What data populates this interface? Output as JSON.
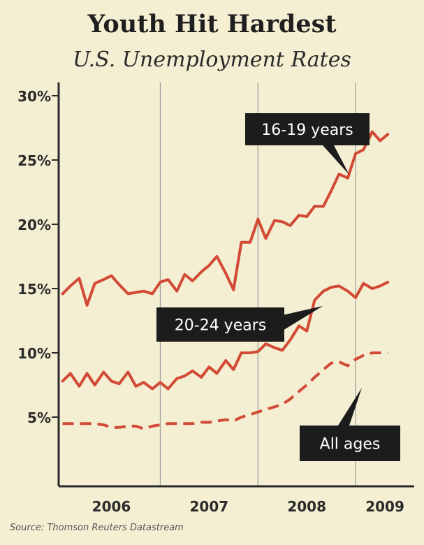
{
  "title": "Youth Hit Hardest",
  "subtitle": "U.S. Unemployment Rates",
  "source": "Source: Thomson Reuters Datastream",
  "colors": {
    "background": "#f4efd2",
    "series": "#d24a35",
    "axis": "#2a2a2a",
    "gridline": "#9a9a9a",
    "callout_bg": "#1c1c1c",
    "callout_text": "#ffffff"
  },
  "chart_data": {
    "type": "line",
    "title": "Youth Hit Hardest",
    "subtitle": "U.S. Unemployment Rates",
    "xlabel": "",
    "ylabel": "",
    "ylim": [
      0,
      31
    ],
    "yticks": [
      5,
      10,
      15,
      20,
      25,
      30
    ],
    "ytick_labels": [
      "5%",
      "10%",
      "15%",
      "20%",
      "25%",
      "30%"
    ],
    "xlim": [
      2005.96,
      2009.6
    ],
    "x_year_labels": [
      "2006",
      "2007",
      "2008",
      "2009"
    ],
    "grid": "vertical lines at year boundaries",
    "series": [
      {
        "name": "16-19 years",
        "style": "solid",
        "x": [
          2006.0,
          2006.08,
          2006.17,
          2006.25,
          2006.33,
          2006.42,
          2006.5,
          2006.58,
          2006.67,
          2006.75,
          2006.83,
          2006.92,
          2007.0,
          2007.08,
          2007.17,
          2007.25,
          2007.33,
          2007.42,
          2007.5,
          2007.58,
          2007.67,
          2007.75,
          2007.83,
          2007.92,
          2008.0,
          2008.08,
          2008.17,
          2008.25,
          2008.33,
          2008.42,
          2008.5,
          2008.58,
          2008.67,
          2008.75,
          2008.83,
          2008.92,
          2009.0,
          2009.08,
          2009.17,
          2009.25,
          2009.33
        ],
        "values": [
          14.6,
          15.2,
          15.8,
          13.7,
          15.4,
          15.7,
          16.0,
          15.3,
          14.6,
          14.7,
          14.8,
          14.6,
          15.5,
          15.7,
          14.8,
          16.1,
          15.6,
          16.3,
          16.8,
          17.5,
          16.2,
          14.9,
          18.6,
          18.6,
          20.4,
          18.9,
          20.3,
          20.2,
          19.9,
          20.7,
          20.6,
          21.4,
          21.4,
          22.6,
          23.9,
          23.6,
          25.5,
          25.8,
          27.2,
          26.5,
          27.0
        ]
      },
      {
        "name": "20-24 years",
        "style": "solid",
        "x": [
          2006.0,
          2006.08,
          2006.17,
          2006.25,
          2006.33,
          2006.42,
          2006.5,
          2006.58,
          2006.67,
          2006.75,
          2006.83,
          2006.92,
          2007.0,
          2007.08,
          2007.17,
          2007.25,
          2007.33,
          2007.42,
          2007.5,
          2007.58,
          2007.67,
          2007.75,
          2007.83,
          2007.92,
          2008.0,
          2008.08,
          2008.17,
          2008.25,
          2008.33,
          2008.42,
          2008.5,
          2008.58,
          2008.67,
          2008.75,
          2008.83,
          2008.92,
          2009.0,
          2009.08,
          2009.17,
          2009.25,
          2009.33
        ],
        "values": [
          7.8,
          8.4,
          7.4,
          8.4,
          7.5,
          8.5,
          7.8,
          7.6,
          8.5,
          7.4,
          7.7,
          7.2,
          7.7,
          7.2,
          8.0,
          8.2,
          8.6,
          8.1,
          8.9,
          8.4,
          9.4,
          8.7,
          10.0,
          10.0,
          10.1,
          10.7,
          10.4,
          10.2,
          11.0,
          12.1,
          11.7,
          14.1,
          14.8,
          15.1,
          15.2,
          14.8,
          14.3,
          15.4,
          15.0,
          15.2,
          15.5
        ]
      },
      {
        "name": "All ages",
        "style": "dashed",
        "x": [
          2006.0,
          2006.08,
          2006.17,
          2006.25,
          2006.33,
          2006.42,
          2006.5,
          2006.58,
          2006.67,
          2006.75,
          2006.83,
          2006.92,
          2007.0,
          2007.08,
          2007.17,
          2007.25,
          2007.33,
          2007.42,
          2007.5,
          2007.58,
          2007.67,
          2007.75,
          2007.83,
          2007.92,
          2008.0,
          2008.08,
          2008.17,
          2008.25,
          2008.33,
          2008.42,
          2008.5,
          2008.58,
          2008.67,
          2008.75,
          2008.83,
          2008.92,
          2009.0,
          2009.08,
          2009.17,
          2009.25,
          2009.33
        ],
        "values": [
          4.5,
          4.5,
          4.5,
          4.5,
          4.5,
          4.4,
          4.2,
          4.2,
          4.3,
          4.3,
          4.1,
          4.3,
          4.4,
          4.5,
          4.5,
          4.5,
          4.5,
          4.6,
          4.6,
          4.7,
          4.8,
          4.7,
          5.0,
          5.2,
          5.4,
          5.6,
          5.8,
          6.0,
          6.4,
          7.0,
          7.5,
          8.1,
          8.7,
          9.2,
          9.3,
          9.0,
          9.5,
          9.8,
          10.0,
          10.0,
          10.0
        ]
      }
    ],
    "annotations": [
      {
        "text": "16-19 years",
        "points_to": "16-19 years"
      },
      {
        "text": "20-24 years",
        "points_to": "20-24 years"
      },
      {
        "text": "All ages",
        "points_to": "All ages"
      }
    ]
  }
}
